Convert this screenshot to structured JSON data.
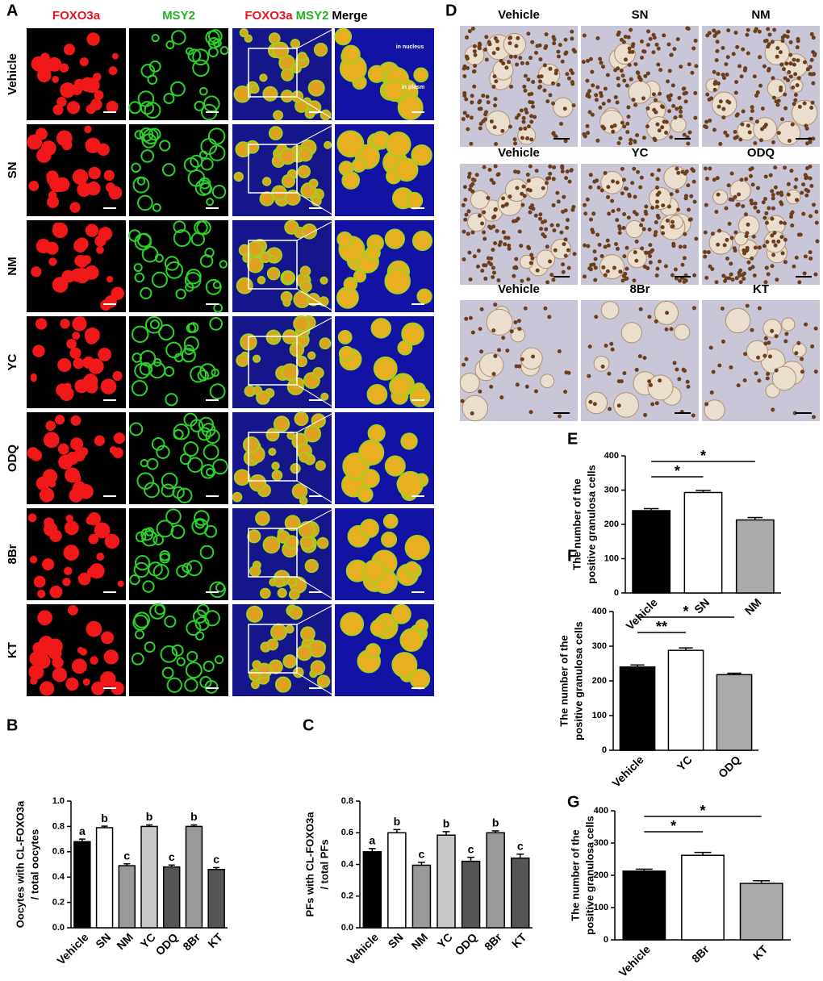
{
  "panel_a": {
    "label": "A",
    "columns": [
      "FOXO3a",
      "MSY2"
    ],
    "merge_header": [
      "FOXO3a",
      "MSY2",
      "Merge"
    ],
    "rows": [
      "Vehicle",
      "SN",
      "NM",
      "YC",
      "ODQ",
      "8Br",
      "KT"
    ],
    "annotations": [
      "in nucleus",
      "in plasm"
    ]
  },
  "panel_d": {
    "label": "D",
    "rows": [
      [
        "Vehicle",
        "SN",
        "NM"
      ],
      [
        "Vehicle",
        "YC",
        "ODQ"
      ],
      [
        "Vehicle",
        "8Br",
        "KT"
      ]
    ]
  },
  "chart_data": [
    {
      "type": "bar",
      "panel_label": "B",
      "y_label": [
        "Oocytes with CL-FOXO3a",
        "/ total oocytes"
      ],
      "categories": [
        "Vehicle",
        "SN",
        "NM",
        "YC",
        "ODQ",
        "8Br",
        "KT"
      ],
      "values": [
        0.68,
        0.79,
        0.49,
        0.8,
        0.48,
        0.8,
        0.46
      ],
      "errors": [
        0.02,
        0.012,
        0.015,
        0.012,
        0.015,
        0.012,
        0.015
      ],
      "colors": [
        "#000000",
        "#ffffff",
        "#999999",
        "#c8c8c8",
        "#555555",
        "#999999",
        "#555555"
      ],
      "value_annotations": [
        "a",
        "b",
        "c",
        "b",
        "c",
        "b",
        "c"
      ],
      "ylim": [
        0,
        1
      ],
      "yticks": [
        {
          "value": 0,
          "label": "0.0"
        },
        0.2,
        0.4,
        0.6,
        0.8,
        {
          "value": 1,
          "label": "1.0"
        }
      ]
    },
    {
      "type": "bar",
      "panel_label": "C",
      "y_label": [
        "PFs with CL-FOXO3a",
        "/ total PFs"
      ],
      "categories": [
        "Vehicle",
        "SN",
        "NM",
        "YC",
        "ODQ",
        "8Br",
        "KT"
      ],
      "values": [
        0.48,
        0.6,
        0.395,
        0.585,
        0.42,
        0.6,
        0.44
      ],
      "errors": [
        0.02,
        0.02,
        0.018,
        0.022,
        0.025,
        0.012,
        0.025
      ],
      "colors": [
        "#000000",
        "#ffffff",
        "#999999",
        "#c8c8c8",
        "#555555",
        "#999999",
        "#555555"
      ],
      "value_annotations": [
        "a",
        "b",
        "c",
        "b",
        "c",
        "b",
        "c"
      ],
      "ylim": [
        0,
        0.8
      ],
      "yticks": [
        {
          "value": 0,
          "label": "0.0"
        },
        0.2,
        0.4,
        0.6,
        0.8
      ]
    },
    {
      "type": "bar",
      "panel_label": "E",
      "y_label": [
        "The number of the",
        "positive granulosa cells"
      ],
      "categories": [
        "Vehicle",
        "SN",
        "NM"
      ],
      "values": [
        240,
        293,
        213
      ],
      "errors": [
        6,
        6,
        7
      ],
      "colors": [
        "#000000",
        "#ffffff",
        "#aaaaaa"
      ],
      "significance": [
        {
          "between": [
            "Vehicle",
            "SN"
          ],
          "label": "*"
        },
        {
          "between": [
            "Vehicle",
            "NM"
          ],
          "label": "*"
        }
      ],
      "ylim": [
        0,
        400
      ],
      "yticks": [
        0,
        100,
        200,
        300,
        400
      ]
    },
    {
      "type": "bar",
      "panel_label": "F",
      "y_label": [
        "The number of the",
        "positive granulosa cells"
      ],
      "categories": [
        "Vehicle",
        "YC",
        "ODQ"
      ],
      "values": [
        240,
        288,
        218
      ],
      "errors": [
        6,
        7,
        4
      ],
      "colors": [
        "#000000",
        "#ffffff",
        "#aaaaaa"
      ],
      "significance": [
        {
          "between": [
            "Vehicle",
            "YC"
          ],
          "label": "**"
        },
        {
          "between": [
            "Vehicle",
            "ODQ"
          ],
          "label": "*"
        }
      ],
      "ylim": [
        0,
        400
      ],
      "yticks": [
        0,
        100,
        200,
        300,
        400
      ]
    },
    {
      "type": "bar",
      "panel_label": "G",
      "y_label": [
        "The number of the",
        "positive granulosa cells"
      ],
      "categories": [
        "Vehicle",
        "8Br",
        "KT"
      ],
      "values": [
        213,
        262,
        175
      ],
      "errors": [
        6,
        9,
        8
      ],
      "colors": [
        "#000000",
        "#ffffff",
        "#aaaaaa"
      ],
      "significance": [
        {
          "between": [
            "Vehicle",
            "8Br"
          ],
          "label": "*"
        },
        {
          "between": [
            "Vehicle",
            "KT"
          ],
          "label": "*"
        }
      ],
      "ylim": [
        0,
        400
      ],
      "yticks": [
        0,
        100,
        200,
        300,
        400
      ]
    }
  ]
}
